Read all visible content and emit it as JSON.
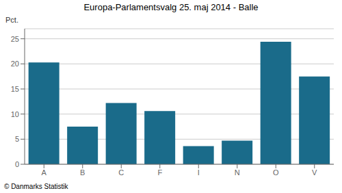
{
  "chart_data": {
    "type": "bar",
    "title": "Europa-Parlamentsvalg 25. maj 2014 - Balle",
    "categories": [
      "A",
      "B",
      "C",
      "F",
      "I",
      "N",
      "O",
      "V"
    ],
    "values": [
      20.3,
      7.5,
      12.2,
      10.6,
      3.6,
      4.7,
      24.4,
      17.5
    ],
    "color": "#1a6b8a",
    "ylabel": "Pct.",
    "footer": "© Danmarks Statistik",
    "ylim": [
      0,
      27
    ],
    "yticks": [
      0,
      5,
      10,
      15,
      20,
      25
    ],
    "grid": true
  }
}
